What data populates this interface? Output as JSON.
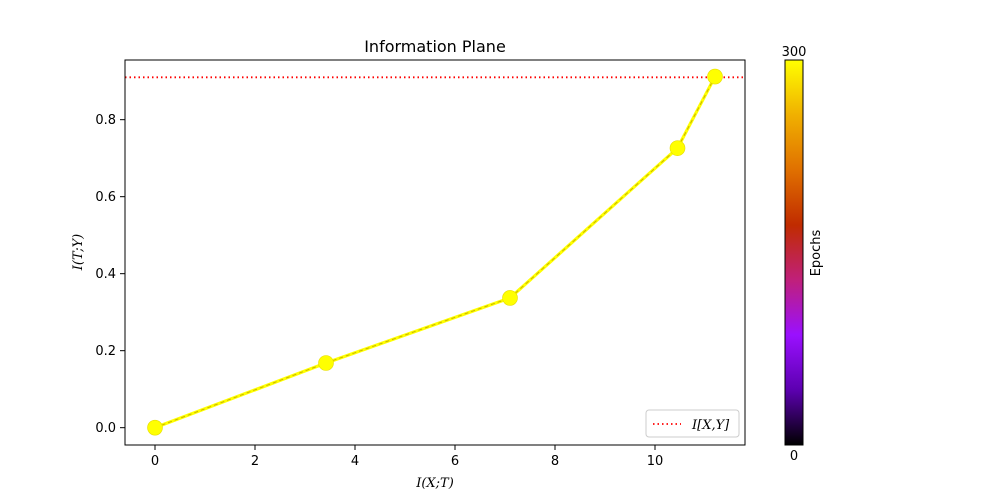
{
  "chart_data": {
    "type": "line",
    "title": "Information Plane",
    "xlabel": "I(X;T)",
    "ylabel": "I(T;Y)",
    "xlim": [
      -0.6,
      11.8
    ],
    "ylim": [
      -0.045,
      0.955
    ],
    "xticks": [
      0,
      2,
      4,
      6,
      8,
      10
    ],
    "yticks": [
      0.0,
      0.2,
      0.4,
      0.6,
      0.8
    ],
    "xtick_labels": [
      "0",
      "2",
      "4",
      "6",
      "8",
      "10"
    ],
    "ytick_labels": [
      "0.0",
      "0.2",
      "0.4",
      "0.6",
      "0.8"
    ],
    "grid": false,
    "series": [
      {
        "x": [
          0.0,
          3.42,
          7.1,
          10.45,
          11.2
        ],
        "y": [
          0.0,
          0.168,
          0.337,
          0.726,
          0.912
        ],
        "color": "#ffff00",
        "marker": "circle",
        "linestyle": "dashed",
        "line_color": "#c8b400"
      }
    ],
    "reference_line": {
      "orientation": "horizontal",
      "y": 0.91,
      "label": "I[X,Y]",
      "color": "#ff0000",
      "linestyle": "dotted"
    },
    "legend": {
      "placement": "lower-right",
      "entries": [
        "I[X,Y]"
      ]
    },
    "colorbar": {
      "label": "Epochs",
      "min": 0,
      "max": 300,
      "min_label": "0",
      "max_label": "300",
      "colormap": "gnuplot",
      "stops": [
        "#000000",
        "#5c00b0",
        "#9a10ff",
        "#c0207a",
        "#c02b00",
        "#e07000",
        "#f0b000",
        "#ffff00"
      ]
    }
  }
}
